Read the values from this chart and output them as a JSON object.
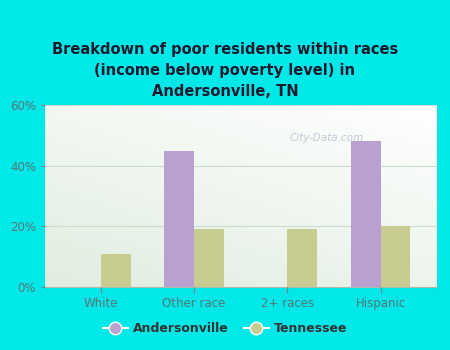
{
  "title": "Breakdown of poor residents within races\n(income below poverty level) in\nAndersonville, TN",
  "categories": [
    "White",
    "Other race",
    "2+ races",
    "Hispanic"
  ],
  "andersonville_values": [
    0,
    45,
    0,
    48
  ],
  "tennessee_values": [
    11,
    19,
    19,
    20
  ],
  "andersonville_color": "#b8a0d0",
  "tennessee_color": "#c8cc90",
  "background_color": "#00e8e8",
  "plot_bg_top": "#e8f5e2",
  "plot_bg_bottom": "#d0e8d0",
  "ylim": [
    0,
    60
  ],
  "yticks": [
    0,
    20,
    40,
    60
  ],
  "bar_width": 0.32,
  "legend_labels": [
    "Andersonville",
    "Tennessee"
  ],
  "watermark": "City-Data.com",
  "title_color": "#1a1a2e",
  "tick_label_color": "#557777",
  "grid_color": "#ccddcc"
}
